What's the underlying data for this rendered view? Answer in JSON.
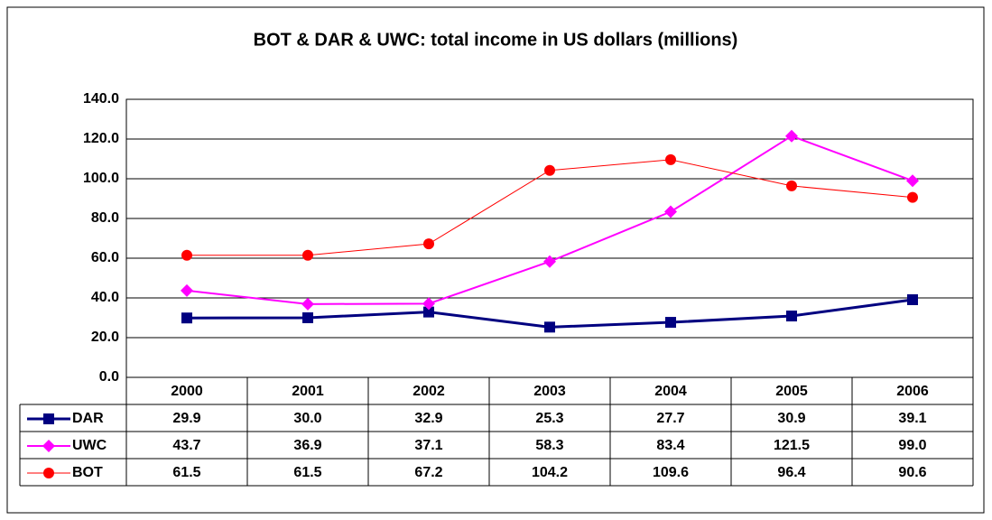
{
  "chart_data": {
    "type": "line",
    "title": "BOT & DAR & UWC: total income in US dollars (millions)",
    "categories": [
      "2000",
      "2001",
      "2002",
      "2003",
      "2004",
      "2005",
      "2006"
    ],
    "series": [
      {
        "name": "DAR",
        "color": "#000080",
        "marker": "square",
        "values": [
          29.9,
          30.0,
          32.9,
          25.3,
          27.7,
          30.9,
          39.1
        ],
        "value_labels": [
          "29.9",
          "30.0",
          "32.9",
          "25.3",
          "27.7",
          "30.9",
          "39.1"
        ]
      },
      {
        "name": "UWC",
        "color": "#ff00ff",
        "marker": "diamond",
        "values": [
          43.7,
          36.9,
          37.1,
          58.3,
          83.4,
          121.5,
          99.0
        ],
        "value_labels": [
          "43.7",
          "36.9",
          "37.1",
          "58.3",
          "83.4",
          "121.5",
          "99.0"
        ]
      },
      {
        "name": "BOT",
        "color": "#ff0000",
        "marker": "circle",
        "values": [
          61.5,
          61.5,
          67.2,
          104.2,
          109.6,
          96.4,
          90.6
        ],
        "value_labels": [
          "61.5",
          "61.5",
          "67.2",
          "104.2",
          "109.6",
          "96.4",
          "90.6"
        ]
      }
    ],
    "ylim": [
      0,
      140
    ],
    "yticks": [
      {
        "value": 0,
        "label": "0.0"
      },
      {
        "value": 20,
        "label": "20.0"
      },
      {
        "value": 40,
        "label": "40.0"
      },
      {
        "value": 60,
        "label": "60.0"
      },
      {
        "value": 80,
        "label": "80.0"
      },
      {
        "value": 100,
        "label": "100.0"
      },
      {
        "value": 120,
        "label": "120.0"
      },
      {
        "value": 140,
        "label": "140.0"
      }
    ],
    "grid": true
  }
}
